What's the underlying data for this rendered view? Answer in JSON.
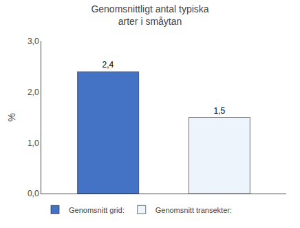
{
  "chart_data": {
    "type": "bar",
    "title": "Genomsnittligt antal typiska\narter i småytan",
    "ylabel": "%",
    "categories": [
      "Genomsnitt grid:",
      "Genomsnitt transekter:"
    ],
    "values": [
      2.4,
      1.5
    ],
    "value_labels": [
      "2,4",
      "1,5"
    ],
    "data_labels": true,
    "colors": [
      "#4472C4",
      "#EEF4FB"
    ],
    "ylim": [
      0,
      3.0
    ],
    "yticks": [
      {
        "value": 0.0,
        "label": "0,0"
      },
      {
        "value": 1.0,
        "label": "1,0"
      },
      {
        "value": 2.0,
        "label": "2,0"
      },
      {
        "value": 3.0,
        "label": "3,0"
      }
    ],
    "legend": "bottom left",
    "tick_labels": "y",
    "grid": false
  }
}
